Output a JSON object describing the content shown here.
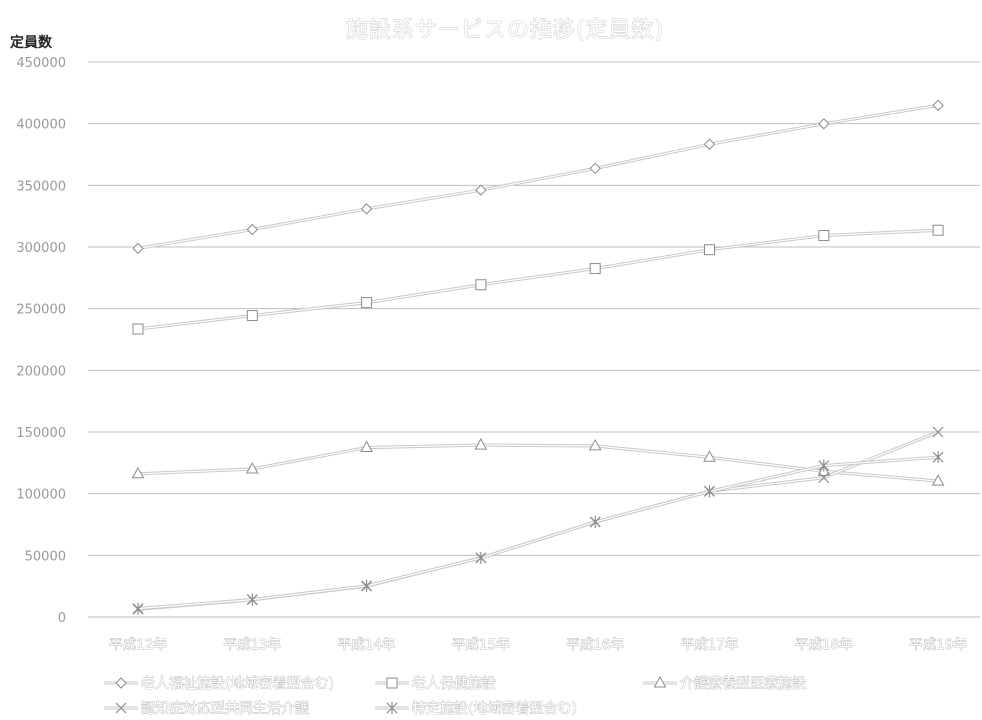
{
  "chart_data": {
    "type": "line",
    "title": "施設系サービスの推移(定員数)",
    "ylabel": "定員数",
    "xlabel": "",
    "ylim": [
      0,
      450000
    ],
    "yticks": [
      0,
      50000,
      100000,
      150000,
      200000,
      250000,
      300000,
      350000,
      400000,
      450000
    ],
    "grid": true,
    "legend_position": "bottom",
    "categories": [
      "平成12年",
      "平成13年",
      "平成14年",
      "平成15年",
      "平成16年",
      "平成17年",
      "平成18年",
      "平成19年"
    ],
    "series": [
      {
        "name": "老人福祉施設(地域密着型含む)",
        "marker": "diamond",
        "values": [
          298900,
          314200,
          330900,
          346100,
          363700,
          383300,
          399900,
          414900
        ]
      },
      {
        "name": "老人保健施設",
        "marker": "square",
        "values": [
          233500,
          244400,
          254900,
          269400,
          282500,
          297800,
          309300,
          313600
        ]
      },
      {
        "name": "介護療養型医療施設",
        "marker": "triangle",
        "values": [
          116100,
          120000,
          137400,
          139400,
          138700,
          129500,
          118100,
          110200
        ]
      },
      {
        "name": "認知症対応型共同生活介護",
        "marker": "x",
        "values": [
          6300,
          14000,
          25000,
          48000,
          77000,
          102000,
          113000,
          150000
        ]
      },
      {
        "name": "特定施設(地域密着型含む)",
        "marker": "asterisk",
        "values": [
          6800,
          14100,
          25300,
          47900,
          77100,
          101800,
          122800,
          129600
        ]
      }
    ]
  }
}
